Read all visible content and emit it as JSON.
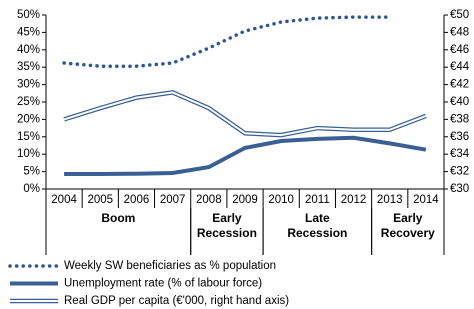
{
  "chart_data": {
    "type": "line",
    "categories": [
      "2004",
      "2005",
      "2006",
      "2007",
      "2008",
      "2009",
      "2010",
      "2011",
      "2012",
      "2013",
      "2014"
    ],
    "groups": [
      {
        "label": [
          "Boom"
        ],
        "from": "2004",
        "to": "2007"
      },
      {
        "label": [
          "Early",
          "Recession"
        ],
        "from": "2008",
        "to": "2009"
      },
      {
        "label": [
          "Late",
          "Recession"
        ],
        "from": "2010",
        "to": "2012"
      },
      {
        "label": [
          "Early",
          "Recovery"
        ],
        "from": "2013",
        "to": "2014"
      }
    ],
    "series": [
      {
        "name": "Weekly SW beneficiaries as % population",
        "color": "#2f5597",
        "style": "dotted",
        "values": [
          36.2,
          35.3,
          35.3,
          36.2,
          40.5,
          45.4,
          48.0,
          49.1,
          49.4,
          49.4,
          null
        ]
      },
      {
        "name": "Unemployment rate (% of labour force)",
        "color": "#3a5f95",
        "style": "solid",
        "values": [
          4.3,
          4.3,
          4.4,
          4.6,
          6.3,
          11.8,
          13.8,
          14.4,
          14.7,
          13.1,
          11.3
        ]
      },
      {
        "name": "Real GDP per capita (€'000, right hand axis)",
        "color": "#3a5f95",
        "style": "double",
        "axis": "y2",
        "values": [
          38.0,
          39.3,
          40.5,
          41.1,
          39.3,
          36.4,
          36.2,
          37.0,
          36.8,
          36.8,
          38.4
        ]
      }
    ],
    "ylim": [
      0,
      50
    ],
    "yticks": [
      {
        "value": 0,
        "label": "0%"
      },
      {
        "value": 5,
        "label": "5%"
      },
      {
        "value": 10,
        "label": "10%"
      },
      {
        "value": 15,
        "label": "15%"
      },
      {
        "value": 20,
        "label": "20%"
      },
      {
        "value": 25,
        "label": "25%"
      },
      {
        "value": 30,
        "label": "30%"
      },
      {
        "value": 35,
        "label": "35%"
      },
      {
        "value": 40,
        "label": "40%"
      },
      {
        "value": 45,
        "label": "45%"
      },
      {
        "value": 50,
        "label": "50%"
      }
    ],
    "y2lim": [
      30,
      50
    ],
    "y2ticks": [
      {
        "value": 30,
        "label": "€30"
      },
      {
        "value": 32,
        "label": "€32"
      },
      {
        "value": 34,
        "label": "€34"
      },
      {
        "value": 36,
        "label": "€36"
      },
      {
        "value": 38,
        "label": "€38"
      },
      {
        "value": 40,
        "label": "€40"
      },
      {
        "value": 42,
        "label": "€42"
      },
      {
        "value": 44,
        "label": "€44"
      },
      {
        "value": 46,
        "label": "€46"
      },
      {
        "value": 48,
        "label": "€48"
      },
      {
        "value": 50,
        "label": "€50"
      }
    ],
    "grid": false
  }
}
